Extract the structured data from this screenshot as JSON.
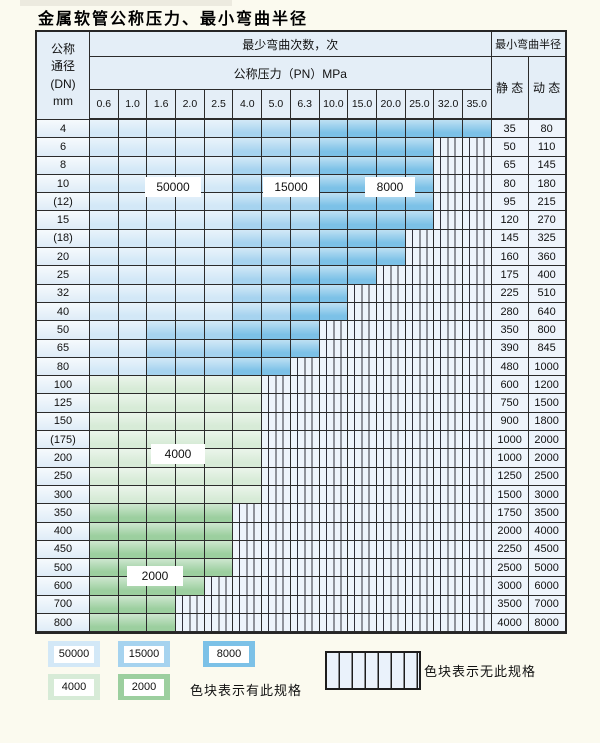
{
  "title": "金属软管公称压力、最小弯曲半径",
  "header": {
    "dn_lines": [
      "公称",
      "通径",
      "(DN)",
      "mm"
    ],
    "bend_cycles_label": "最少弯曲次数，次",
    "pressure_label": "公称压力（PN）MPa",
    "radius_label": "最小弯曲半径",
    "static_label": "静 态",
    "dynamic_label": "动 态"
  },
  "chart_data": {
    "type": "heatmap",
    "title": "金属软管公称压力、最小弯曲半径",
    "x_label": "公称压力（PN）MPa",
    "y_label": "公称通径(DN) mm",
    "columns": [
      "0.6",
      "1.0",
      "1.6",
      "2.0",
      "2.5",
      "4.0",
      "5.0",
      "6.3",
      "10.0",
      "15.0",
      "20.0",
      "25.0",
      "32.0",
      "35.0"
    ],
    "cycle_colors": {
      "50000": "#d3e8f7",
      "15000": "#a6d3ef",
      "8000": "#7cc1e7",
      "4000": "#d7ebd7",
      "2000": "#9ccf9f"
    },
    "legend_note": "zones give, per row, the last pressure column (1-based index into columns) covered by each bend-cycle colour; remaining columns are hatched = no such specification",
    "rows": [
      {
        "dn": "4",
        "static": "35",
        "dynamic": "80",
        "zones": [
          {
            "end": 5,
            "cycles": "50000"
          },
          {
            "end": 8,
            "cycles": "15000"
          },
          {
            "end": 14,
            "cycles": "8000"
          }
        ]
      },
      {
        "dn": "6",
        "static": "50",
        "dynamic": "110",
        "zones": [
          {
            "end": 5,
            "cycles": "50000"
          },
          {
            "end": 8,
            "cycles": "15000"
          },
          {
            "end": 12,
            "cycles": "8000"
          }
        ]
      },
      {
        "dn": "8",
        "static": "65",
        "dynamic": "145",
        "zones": [
          {
            "end": 5,
            "cycles": "50000"
          },
          {
            "end": 8,
            "cycles": "15000"
          },
          {
            "end": 12,
            "cycles": "8000"
          }
        ]
      },
      {
        "dn": "10",
        "static": "80",
        "dynamic": "180",
        "zones": [
          {
            "end": 5,
            "cycles": "50000"
          },
          {
            "end": 8,
            "cycles": "15000"
          },
          {
            "end": 12,
            "cycles": "8000"
          }
        ]
      },
      {
        "dn": "(12)",
        "static": "95",
        "dynamic": "215",
        "zones": [
          {
            "end": 5,
            "cycles": "50000"
          },
          {
            "end": 8,
            "cycles": "15000"
          },
          {
            "end": 12,
            "cycles": "8000"
          }
        ]
      },
      {
        "dn": "15",
        "static": "120",
        "dynamic": "270",
        "zones": [
          {
            "end": 5,
            "cycles": "50000"
          },
          {
            "end": 8,
            "cycles": "15000"
          },
          {
            "end": 12,
            "cycles": "8000"
          }
        ]
      },
      {
        "dn": "(18)",
        "static": "145",
        "dynamic": "325",
        "zones": [
          {
            "end": 5,
            "cycles": "50000"
          },
          {
            "end": 8,
            "cycles": "15000"
          },
          {
            "end": 11,
            "cycles": "8000"
          }
        ]
      },
      {
        "dn": "20",
        "static": "160",
        "dynamic": "360",
        "zones": [
          {
            "end": 5,
            "cycles": "50000"
          },
          {
            "end": 8,
            "cycles": "15000"
          },
          {
            "end": 11,
            "cycles": "8000"
          }
        ]
      },
      {
        "dn": "25",
        "static": "175",
        "dynamic": "400",
        "zones": [
          {
            "end": 5,
            "cycles": "50000"
          },
          {
            "end": 7,
            "cycles": "15000"
          },
          {
            "end": 10,
            "cycles": "8000"
          }
        ]
      },
      {
        "dn": "32",
        "static": "225",
        "dynamic": "510",
        "zones": [
          {
            "end": 5,
            "cycles": "50000"
          },
          {
            "end": 7,
            "cycles": "15000"
          },
          {
            "end": 9,
            "cycles": "8000"
          }
        ]
      },
      {
        "dn": "40",
        "static": "280",
        "dynamic": "640",
        "zones": [
          {
            "end": 5,
            "cycles": "50000"
          },
          {
            "end": 7,
            "cycles": "15000"
          },
          {
            "end": 9,
            "cycles": "8000"
          }
        ]
      },
      {
        "dn": "50",
        "static": "350",
        "dynamic": "800",
        "zones": [
          {
            "end": 2,
            "cycles": "50000"
          },
          {
            "end": 5,
            "cycles": "15000"
          },
          {
            "end": 8,
            "cycles": "8000"
          }
        ]
      },
      {
        "dn": "65",
        "static": "390",
        "dynamic": "845",
        "zones": [
          {
            "end": 2,
            "cycles": "50000"
          },
          {
            "end": 5,
            "cycles": "15000"
          },
          {
            "end": 8,
            "cycles": "8000"
          }
        ]
      },
      {
        "dn": "80",
        "static": "480",
        "dynamic": "1000",
        "zones": [
          {
            "end": 2,
            "cycles": "50000"
          },
          {
            "end": 5,
            "cycles": "15000"
          },
          {
            "end": 7,
            "cycles": "8000"
          }
        ]
      },
      {
        "dn": "100",
        "static": "600",
        "dynamic": "1200",
        "zones": [
          {
            "end": 6,
            "cycles": "4000"
          }
        ]
      },
      {
        "dn": "125",
        "static": "750",
        "dynamic": "1500",
        "zones": [
          {
            "end": 6,
            "cycles": "4000"
          }
        ]
      },
      {
        "dn": "150",
        "static": "900",
        "dynamic": "1800",
        "zones": [
          {
            "end": 6,
            "cycles": "4000"
          }
        ]
      },
      {
        "dn": "(175)",
        "static": "1000",
        "dynamic": "2000",
        "zones": [
          {
            "end": 6,
            "cycles": "4000"
          }
        ]
      },
      {
        "dn": "200",
        "static": "1000",
        "dynamic": "2000",
        "zones": [
          {
            "end": 6,
            "cycles": "4000"
          }
        ]
      },
      {
        "dn": "250",
        "static": "1250",
        "dynamic": "2500",
        "zones": [
          {
            "end": 6,
            "cycles": "4000"
          }
        ]
      },
      {
        "dn": "300",
        "static": "1500",
        "dynamic": "3000",
        "zones": [
          {
            "end": 6,
            "cycles": "4000"
          }
        ]
      },
      {
        "dn": "350",
        "static": "1750",
        "dynamic": "3500",
        "zones": [
          {
            "end": 5,
            "cycles": "2000"
          }
        ]
      },
      {
        "dn": "400",
        "static": "2000",
        "dynamic": "4000",
        "zones": [
          {
            "end": 5,
            "cycles": "2000"
          }
        ]
      },
      {
        "dn": "450",
        "static": "2250",
        "dynamic": "4500",
        "zones": [
          {
            "end": 5,
            "cycles": "2000"
          }
        ]
      },
      {
        "dn": "500",
        "static": "2500",
        "dynamic": "5000",
        "zones": [
          {
            "end": 5,
            "cycles": "2000"
          }
        ]
      },
      {
        "dn": "600",
        "static": "3000",
        "dynamic": "6000",
        "zones": [
          {
            "end": 4,
            "cycles": "2000"
          }
        ]
      },
      {
        "dn": "700",
        "static": "3500",
        "dynamic": "7000",
        "zones": [
          {
            "end": 3,
            "cycles": "2000"
          }
        ]
      },
      {
        "dn": "800",
        "static": "4000",
        "dynamic": "8000",
        "zones": [
          {
            "end": 3,
            "cycles": "2000"
          }
        ]
      }
    ]
  },
  "overlay_labels": [
    {
      "text": "50000"
    },
    {
      "text": "15000"
    },
    {
      "text": "8000"
    },
    {
      "text": "4000"
    },
    {
      "text": "2000"
    }
  ],
  "legend": {
    "items": [
      {
        "label": "50000",
        "color": "#d3e8f7"
      },
      {
        "label": "15000",
        "color": "#a6d3ef"
      },
      {
        "label": "8000",
        "color": "#7cc1e7"
      },
      {
        "label": "4000",
        "color": "#d7ebd7"
      },
      {
        "label": "2000",
        "color": "#9ccf9f"
      }
    ],
    "has_spec_text": "色块表示有此规格",
    "no_spec_text": "色块表示无此规格"
  }
}
